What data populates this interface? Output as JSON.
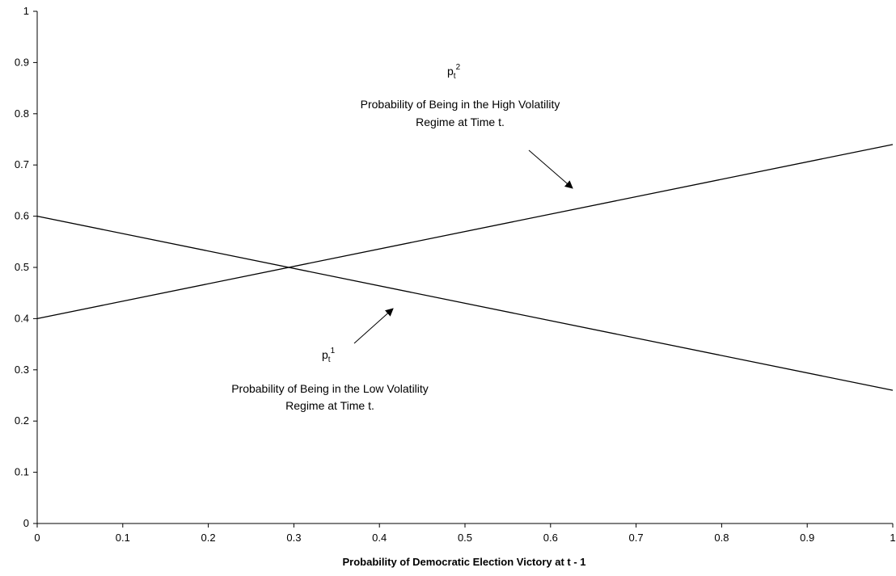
{
  "chart_data": {
    "type": "line",
    "xlabel": "Probability of Democratic Election Victory at t - 1",
    "ylabel": "",
    "xlim": [
      0,
      1
    ],
    "ylim": [
      0,
      1
    ],
    "x_ticks": [
      "0",
      "0.1",
      "0.2",
      "0.3",
      "0.4",
      "0.5",
      "0.6",
      "0.7",
      "0.8",
      "0.9",
      "1"
    ],
    "y_ticks": [
      "0",
      "0.1",
      "0.2",
      "0.3",
      "0.4",
      "0.5",
      "0.6",
      "0.7",
      "0.8",
      "0.9",
      "1"
    ],
    "grid": false,
    "series": [
      {
        "x": [
          0,
          1
        ],
        "y": [
          0.6,
          0.26
        ]
      },
      {
        "x": [
          0,
          1
        ],
        "y": [
          0.4,
          0.74
        ]
      }
    ],
    "annotations": {
      "high": {
        "symbol": "p",
        "sub": "t",
        "sup": "2",
        "line1": "Probability of Being in the High Volatility",
        "line2": "Regime at Time t."
      },
      "low": {
        "symbol": "p",
        "sub": "t",
        "sup": "1",
        "line1": "Probability of Being in the Low Volatility",
        "line2": "Regime at Time t."
      }
    }
  }
}
